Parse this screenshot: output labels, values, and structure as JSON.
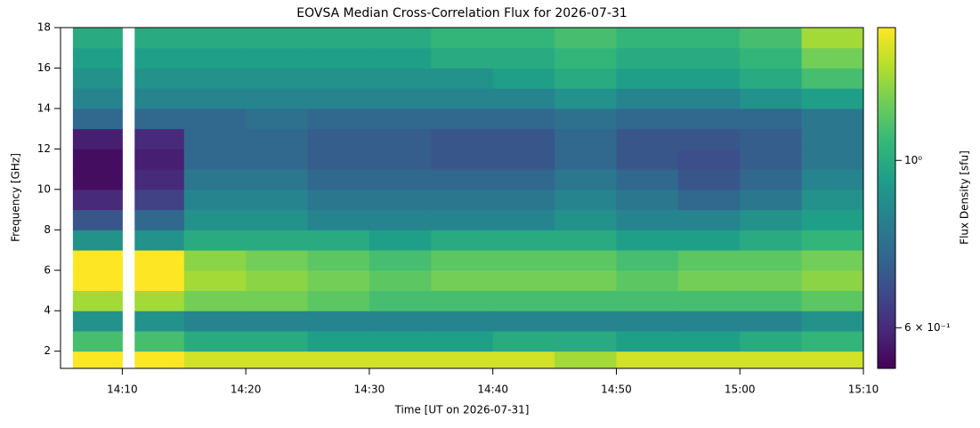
{
  "chart_data": {
    "type": "heatmap",
    "title": "EOVSA Median Cross-Correlation Flux for 2026-07-31",
    "xlabel": "Time [UT on 2026-07-31]",
    "ylabel": "Frequency [GHz]",
    "colorbar_label": "Flux Density [sfu]",
    "colormap": "viridis",
    "color_scale": "log",
    "x": [
      "14:06",
      "14:10",
      "14:11",
      "14:15",
      "14:20",
      "14:25",
      "14:30",
      "14:35",
      "14:40",
      "14:45",
      "14:50",
      "14:55",
      "15:00",
      "15:05",
      "15:10"
    ],
    "y": [
      1.15,
      2,
      3,
      4,
      5,
      6,
      7,
      8,
      9,
      10,
      11,
      12,
      13,
      14,
      15,
      16,
      17,
      18
    ],
    "z": [
      [
        1.5,
        null,
        1.5,
        1.4,
        1.4,
        1.4,
        1.4,
        1.4,
        1.4,
        1.3,
        1.4,
        1.4,
        1.4,
        1.4
      ],
      [
        1.1,
        null,
        1.1,
        1.0,
        1.0,
        0.95,
        0.95,
        0.95,
        1.0,
        1.0,
        0.95,
        0.95,
        1.0,
        1.05
      ],
      [
        0.9,
        null,
        0.9,
        0.85,
        0.85,
        0.85,
        0.85,
        0.85,
        0.85,
        0.85,
        0.85,
        0.85,
        0.85,
        0.9
      ],
      [
        1.3,
        null,
        1.3,
        1.2,
        1.2,
        1.15,
        1.1,
        1.1,
        1.1,
        1.1,
        1.1,
        1.1,
        1.1,
        1.15
      ],
      [
        1.5,
        null,
        1.5,
        1.3,
        1.25,
        1.2,
        1.15,
        1.2,
        1.2,
        1.2,
        1.15,
        1.2,
        1.2,
        1.25
      ],
      [
        1.5,
        null,
        1.5,
        1.25,
        1.2,
        1.15,
        1.1,
        1.15,
        1.15,
        1.15,
        1.1,
        1.15,
        1.15,
        1.2
      ],
      [
        0.9,
        null,
        0.9,
        1.0,
        1.0,
        1.0,
        0.95,
        1.0,
        1.0,
        1.0,
        0.95,
        0.95,
        1.0,
        1.05
      ],
      [
        0.7,
        null,
        0.75,
        0.9,
        0.9,
        0.85,
        0.85,
        0.85,
        0.85,
        0.9,
        0.85,
        0.85,
        0.9,
        0.95
      ],
      [
        0.6,
        null,
        0.65,
        0.85,
        0.85,
        0.8,
        0.8,
        0.8,
        0.8,
        0.85,
        0.8,
        0.75,
        0.8,
        0.9
      ],
      [
        0.55,
        null,
        0.6,
        0.8,
        0.8,
        0.75,
        0.75,
        0.75,
        0.75,
        0.8,
        0.75,
        0.7,
        0.75,
        0.85
      ],
      [
        0.55,
        null,
        0.58,
        0.75,
        0.75,
        0.72,
        0.72,
        0.7,
        0.7,
        0.75,
        0.7,
        0.68,
        0.72,
        0.8
      ],
      [
        0.58,
        null,
        0.6,
        0.75,
        0.75,
        0.72,
        0.72,
        0.7,
        0.7,
        0.75,
        0.7,
        0.7,
        0.72,
        0.8
      ],
      [
        0.75,
        null,
        0.75,
        0.75,
        0.78,
        0.75,
        0.75,
        0.75,
        0.75,
        0.78,
        0.75,
        0.75,
        0.75,
        0.8
      ],
      [
        0.85,
        null,
        0.85,
        0.85,
        0.85,
        0.85,
        0.85,
        0.85,
        0.85,
        0.9,
        0.85,
        0.85,
        0.9,
        0.95
      ],
      [
        0.9,
        null,
        0.9,
        0.9,
        0.9,
        0.9,
        0.9,
        0.9,
        0.95,
        1.0,
        0.95,
        0.95,
        1.0,
        1.1
      ],
      [
        0.95,
        null,
        0.95,
        0.95,
        0.95,
        0.95,
        0.95,
        1.0,
        1.0,
        1.05,
        1.0,
        1.0,
        1.05,
        1.2
      ],
      [
        1.0,
        null,
        1.0,
        1.0,
        1.0,
        1.0,
        1.0,
        1.05,
        1.05,
        1.1,
        1.05,
        1.05,
        1.1,
        1.3
      ]
    ],
    "xlim": [
      "14:05",
      "15:10"
    ],
    "xticks": [
      "14:10",
      "14:20",
      "14:30",
      "14:40",
      "14:50",
      "15:00",
      "15:10"
    ],
    "ylim": [
      1.15,
      18
    ],
    "yticks": [
      2,
      4,
      6,
      8,
      10,
      12,
      14,
      16,
      18
    ],
    "clim": [
      0.53,
      1.5
    ],
    "cticks": [
      {
        "value": 1,
        "label": "10⁰"
      },
      {
        "value": 0.6,
        "label": "6 × 10⁻¹"
      }
    ]
  }
}
